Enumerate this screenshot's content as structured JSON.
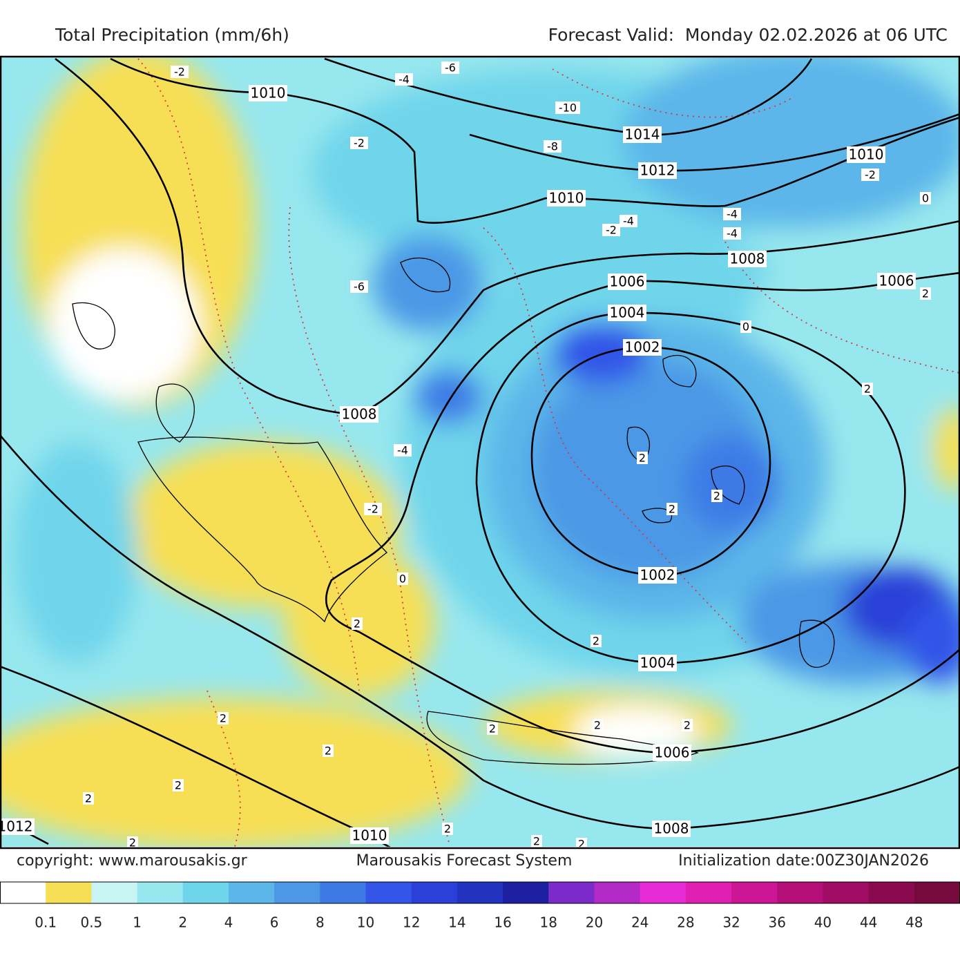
{
  "header": {
    "title": "Total Precipitation (mm/6h)",
    "forecast": "Forecast Valid:  Monday 02.02.2026 at 06 UTC"
  },
  "map": {
    "isobar_labels": [
      "1010",
      "1014",
      "1012",
      "1010",
      "1010",
      "1008",
      "1006",
      "1006",
      "1004",
      "1002",
      "1008",
      "1002",
      "1004",
      "1006",
      "1008",
      "1010",
      "1012"
    ],
    "temperature_labels": [
      "-2",
      "-4",
      "-6",
      "-10",
      "-2",
      "-8",
      "-2",
      "0",
      "-4",
      "-4",
      "-2",
      "-4",
      "-6",
      "0",
      "2",
      "2",
      "-4",
      "2",
      "2",
      "-2",
      "2",
      "0",
      "2",
      "2",
      "2",
      "2",
      "2",
      "2",
      "2",
      "2",
      "2",
      "2",
      "2",
      "2",
      "2"
    ]
  },
  "footer": {
    "copyright": "copyright: www.marousakis.gr",
    "system": "Marousakis Forecast System",
    "initialization": "Initialization date:00Z30JAN2026"
  },
  "legend": {
    "colors": [
      "#ffffff",
      "#f7df55",
      "#c9f4f4",
      "#97e7ee",
      "#6fd5eb",
      "#5cb6e9",
      "#4c98e6",
      "#3d7ae6",
      "#3355e8",
      "#2a40d8",
      "#2233bf",
      "#1c1fa0",
      "#7c2ac9",
      "#b42ac8",
      "#e62cd6",
      "#de1fb2",
      "#cc1695",
      "#b51079",
      "#a00b64",
      "#8a0a4f",
      "#760a3c"
    ],
    "ticks": [
      0.1,
      0.5,
      1,
      2,
      4,
      6,
      8,
      10,
      12,
      14,
      16,
      18,
      20,
      24,
      28,
      32,
      36,
      40,
      44,
      48
    ]
  }
}
